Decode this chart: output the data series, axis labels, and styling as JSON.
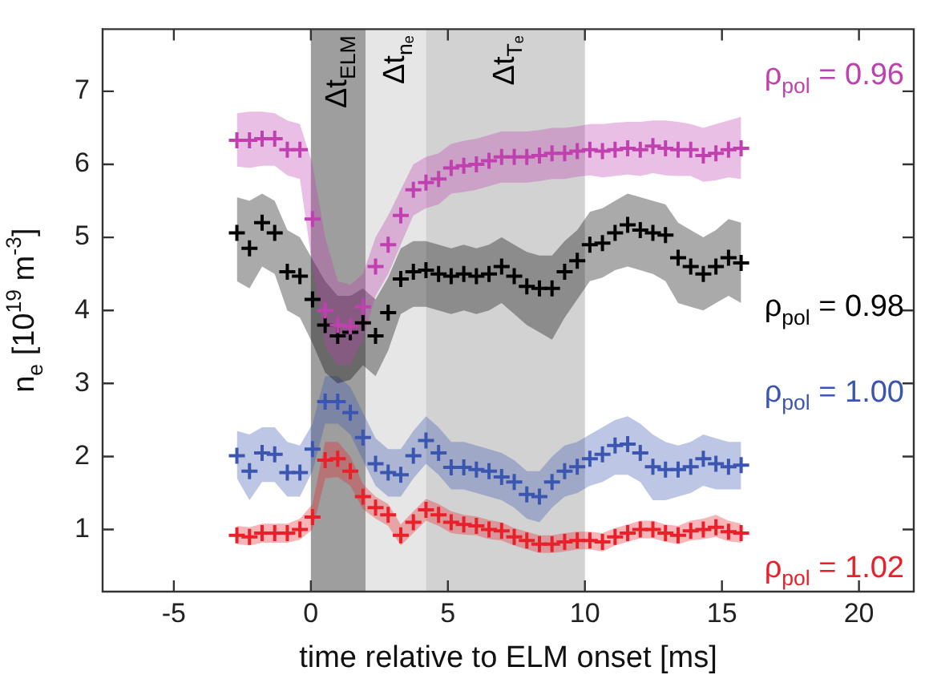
{
  "chart_data": {
    "type": "scatter",
    "xlabel": "time relative to ELM onset [ms]",
    "ylabel": "n$_{e}$ [10$^{19}$ m$^{-3}$]",
    "xlim": [
      -7.6,
      22
    ],
    "ylim": [
      0.15,
      7.85
    ],
    "xticks": [
      -5,
      0,
      5,
      10,
      15,
      20
    ],
    "yticks": [
      1,
      2,
      3,
      4,
      5,
      6,
      7
    ],
    "grid": false,
    "legend": false,
    "marker": "cross",
    "bands": [
      {
        "axis": "x",
        "from": 0,
        "to": 2,
        "label": "Δt$_{ELM}$",
        "color": "#9e9e9e"
      },
      {
        "axis": "x",
        "from": 2,
        "to": 4.2,
        "label": "Δt$_{nₑ}$",
        "color": "#e6e6e6"
      },
      {
        "axis": "x",
        "from": 4.2,
        "to": 10,
        "label": "Δt$_{Tₑ}$",
        "color": "#d2d2d2"
      }
    ],
    "x": [
      -2.7,
      -2.24,
      -1.78,
      -1.32,
      -0.86,
      -0.4,
      0.06,
      0.52,
      0.98,
      1.44,
      1.9,
      2.36,
      2.82,
      3.28,
      3.74,
      4.2,
      4.66,
      5.12,
      5.58,
      6.04,
      6.5,
      6.96,
      7.42,
      7.88,
      8.34,
      8.8,
      9.26,
      9.72,
      10.18,
      10.64,
      11.1,
      11.56,
      12.02,
      12.48,
      12.94,
      13.4,
      13.86,
      14.32,
      14.78,
      15.24,
      15.7
    ],
    "series": [
      {
        "name": "ρ$_{pol}$ = 0.96",
        "color": "#c040b0",
        "values": [
          6.33,
          6.33,
          6.35,
          6.35,
          6.2,
          6.2,
          5.25,
          4.0,
          3.8,
          3.78,
          4.05,
          4.6,
          4.9,
          5.3,
          5.65,
          5.75,
          5.8,
          5.95,
          5.98,
          6.0,
          6.05,
          6.1,
          6.1,
          6.1,
          6.12,
          6.15,
          6.15,
          6.18,
          6.2,
          6.18,
          6.2,
          6.22,
          6.2,
          6.25,
          6.22,
          6.2,
          6.2,
          6.12,
          6.15,
          6.2,
          6.22
        ],
        "upper": [
          6.7,
          6.72,
          6.72,
          6.7,
          6.6,
          6.55,
          6.0,
          5.0,
          4.4,
          4.35,
          4.5,
          5.0,
          5.3,
          5.65,
          6.0,
          6.1,
          6.15,
          6.28,
          6.32,
          6.35,
          6.4,
          6.45,
          6.45,
          6.45,
          6.47,
          6.5,
          6.5,
          6.52,
          6.55,
          6.55,
          6.57,
          6.58,
          6.58,
          6.6,
          6.6,
          6.58,
          6.55,
          6.5,
          6.55,
          6.6,
          6.65
        ],
        "lower": [
          5.97,
          5.95,
          5.98,
          5.98,
          5.85,
          5.8,
          4.6,
          3.5,
          3.25,
          3.25,
          3.6,
          4.2,
          4.5,
          4.9,
          5.3,
          5.4,
          5.45,
          5.6,
          5.62,
          5.65,
          5.7,
          5.75,
          5.75,
          5.75,
          5.77,
          5.8,
          5.8,
          5.83,
          5.85,
          5.82,
          5.84,
          5.86,
          5.84,
          5.88,
          5.85,
          5.84,
          5.84,
          5.76,
          5.78,
          5.82,
          5.8
        ]
      },
      {
        "name": "ρ$_{pol}$ = 0.98",
        "color": "#000000",
        "values": [
          5.06,
          4.85,
          5.2,
          5.06,
          4.53,
          4.47,
          4.15,
          3.8,
          3.65,
          3.7,
          3.83,
          3.65,
          3.97,
          4.43,
          4.53,
          4.55,
          4.5,
          4.47,
          4.5,
          4.47,
          4.5,
          4.6,
          4.47,
          4.33,
          4.3,
          4.3,
          4.53,
          4.68,
          4.9,
          4.92,
          5.06,
          5.17,
          5.1,
          5.06,
          5.03,
          4.72,
          4.6,
          4.5,
          4.6,
          4.72,
          4.65
        ],
        "upper": [
          5.55,
          5.5,
          5.6,
          5.5,
          5.1,
          5.0,
          4.7,
          4.4,
          4.2,
          4.2,
          4.3,
          4.15,
          4.45,
          4.85,
          4.95,
          4.95,
          4.9,
          4.85,
          4.9,
          4.85,
          4.9,
          5.0,
          4.9,
          4.8,
          4.75,
          4.75,
          4.95,
          5.1,
          5.35,
          5.4,
          5.5,
          5.6,
          5.55,
          5.5,
          5.45,
          5.2,
          5.1,
          5.0,
          5.1,
          5.25,
          5.2
        ],
        "lower": [
          4.4,
          4.3,
          4.6,
          4.5,
          4.0,
          3.9,
          3.55,
          3.15,
          3.0,
          3.05,
          3.25,
          3.1,
          3.45,
          3.95,
          4.05,
          4.05,
          4.0,
          3.95,
          4.0,
          3.95,
          4.0,
          4.1,
          3.95,
          3.8,
          3.7,
          3.6,
          3.9,
          4.15,
          4.4,
          4.45,
          4.55,
          4.6,
          4.55,
          4.5,
          4.4,
          4.1,
          4.05,
          4.0,
          4.1,
          4.2,
          4.1
        ]
      },
      {
        "name": "ρ$_{pol}$ = 1.00",
        "color": "#3a56b0",
        "values": [
          2.01,
          1.8,
          2.05,
          2.03,
          1.78,
          1.78,
          2.1,
          2.75,
          2.75,
          2.6,
          2.26,
          1.9,
          1.78,
          1.75,
          2.01,
          2.22,
          2.05,
          1.85,
          1.85,
          1.82,
          1.8,
          1.72,
          1.65,
          1.48,
          1.45,
          1.65,
          1.8,
          1.86,
          1.97,
          2.03,
          2.15,
          2.17,
          2.05,
          1.86,
          1.82,
          1.82,
          1.86,
          1.97,
          1.9,
          1.86,
          1.88
        ],
        "upper": [
          2.35,
          2.3,
          2.4,
          2.4,
          2.2,
          2.15,
          2.45,
          3.1,
          3.1,
          2.95,
          2.6,
          2.25,
          2.1,
          2.1,
          2.35,
          2.55,
          2.4,
          2.2,
          2.2,
          2.15,
          2.1,
          2.05,
          1.95,
          1.8,
          1.8,
          2.0,
          2.15,
          2.2,
          2.3,
          2.4,
          2.5,
          2.55,
          2.45,
          2.3,
          2.2,
          2.15,
          2.2,
          2.3,
          2.25,
          2.2,
          2.2
        ],
        "lower": [
          1.7,
          1.4,
          1.65,
          1.65,
          1.45,
          1.45,
          1.8,
          2.45,
          2.45,
          2.3,
          1.95,
          1.6,
          1.45,
          1.45,
          1.7,
          1.9,
          1.75,
          1.55,
          1.55,
          1.5,
          1.45,
          1.4,
          1.3,
          1.15,
          1.1,
          1.3,
          1.45,
          1.5,
          1.6,
          1.65,
          1.75,
          1.75,
          1.65,
          1.4,
          1.4,
          1.45,
          1.5,
          1.6,
          1.55,
          1.55,
          1.55
        ]
      },
      {
        "name": "ρ$_{pol}$ = 1.02",
        "color": "#e8202a",
        "values": [
          0.92,
          0.9,
          0.95,
          0.95,
          0.95,
          1.0,
          1.17,
          1.95,
          1.97,
          1.8,
          1.45,
          1.3,
          1.2,
          0.92,
          1.1,
          1.27,
          1.2,
          1.1,
          1.07,
          1.05,
          1.0,
          0.98,
          0.9,
          0.85,
          0.8,
          0.8,
          0.83,
          0.85,
          0.85,
          0.83,
          0.9,
          0.95,
          1.0,
          1.0,
          0.95,
          0.92,
          0.98,
          1.0,
          1.03,
          0.97,
          0.95
        ],
        "upper": [
          1.05,
          1.03,
          1.08,
          1.08,
          1.08,
          1.15,
          1.35,
          2.2,
          2.2,
          2.0,
          1.62,
          1.45,
          1.35,
          1.07,
          1.25,
          1.42,
          1.35,
          1.25,
          1.2,
          1.18,
          1.13,
          1.1,
          1.02,
          0.97,
          0.92,
          0.92,
          0.95,
          0.97,
          0.97,
          0.95,
          1.02,
          1.07,
          1.12,
          1.12,
          1.07,
          1.05,
          1.12,
          1.15,
          1.2,
          1.12,
          1.08
        ],
        "lower": [
          0.8,
          0.78,
          0.82,
          0.82,
          0.82,
          0.86,
          1.0,
          1.7,
          1.72,
          1.6,
          1.28,
          1.15,
          1.05,
          0.78,
          0.95,
          1.12,
          1.05,
          0.95,
          0.93,
          0.92,
          0.87,
          0.85,
          0.78,
          0.73,
          0.68,
          0.68,
          0.7,
          0.73,
          0.73,
          0.7,
          0.78,
          0.83,
          0.88,
          0.88,
          0.83,
          0.8,
          0.85,
          0.87,
          0.9,
          0.84,
          0.82
        ]
      }
    ]
  }
}
